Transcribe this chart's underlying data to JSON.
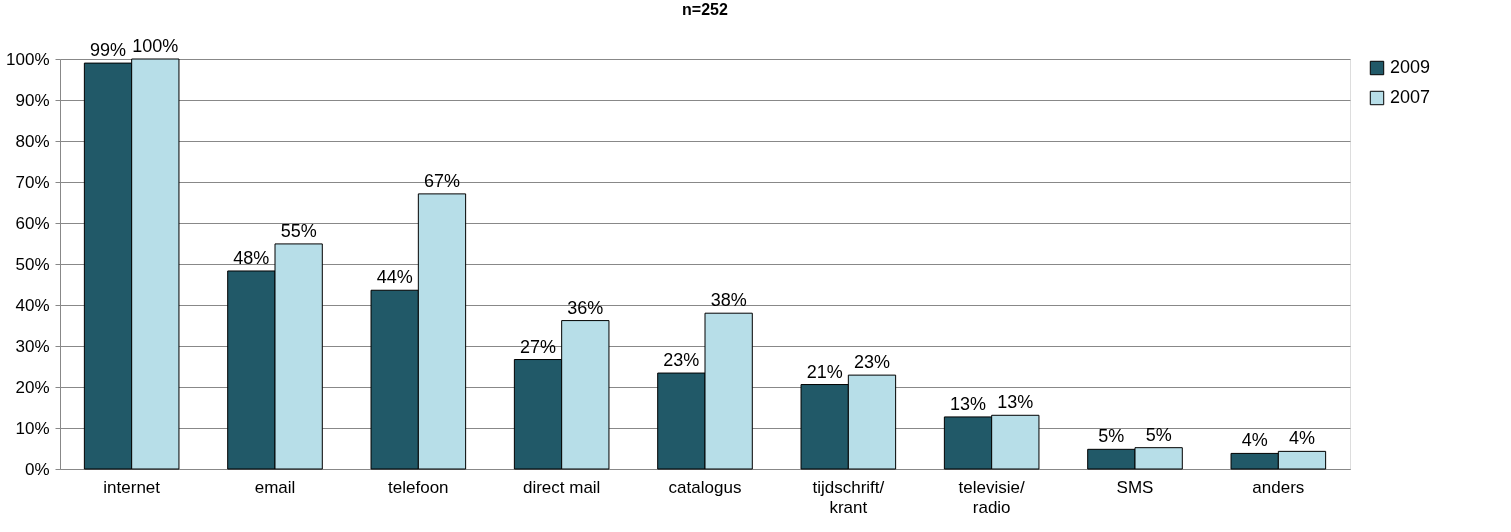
{
  "chart_data": {
    "type": "bar",
    "title": "n=252",
    "categories": [
      "internet",
      "email",
      "telefoon",
      "direct mail",
      "catalogus",
      "tijdschrift/\nkrant",
      "televisie/\nradio",
      "SMS",
      "anders"
    ],
    "series": [
      {
        "name": "2009",
        "color": "#215968",
        "values": [
          99,
          48.3,
          43.6,
          26.7,
          23.4,
          20.6,
          12.7,
          4.8,
          3.8
        ],
        "value_labels": [
          "99%",
          "48%",
          "44%",
          "27%",
          "23%",
          "21%",
          "13%",
          "5%",
          "4%"
        ]
      },
      {
        "name": "2007",
        "color": "#b7dee8",
        "values": [
          100,
          54.9,
          67.1,
          36.2,
          38,
          22.9,
          13.1,
          5.2,
          4.3
        ],
        "value_labels": [
          "100%",
          "55%",
          "67%",
          "36%",
          "38%",
          "23%",
          "13%",
          "5%",
          "4%"
        ]
      }
    ],
    "ylim": [
      0,
      100
    ],
    "yticks": [
      {
        "value": 0,
        "label": "0%"
      },
      {
        "value": 10,
        "label": "10%"
      },
      {
        "value": 20,
        "label": "20%"
      },
      {
        "value": 30,
        "label": "30%"
      },
      {
        "value": 40,
        "label": "40%"
      },
      {
        "value": 50,
        "label": "50%"
      },
      {
        "value": 60,
        "label": "60%"
      },
      {
        "value": 70,
        "label": "70%"
      },
      {
        "value": 80,
        "label": "80%"
      },
      {
        "value": 90,
        "label": "90%"
      },
      {
        "value": 100,
        "label": "100%"
      }
    ],
    "grid": "y",
    "legend": "right"
  }
}
